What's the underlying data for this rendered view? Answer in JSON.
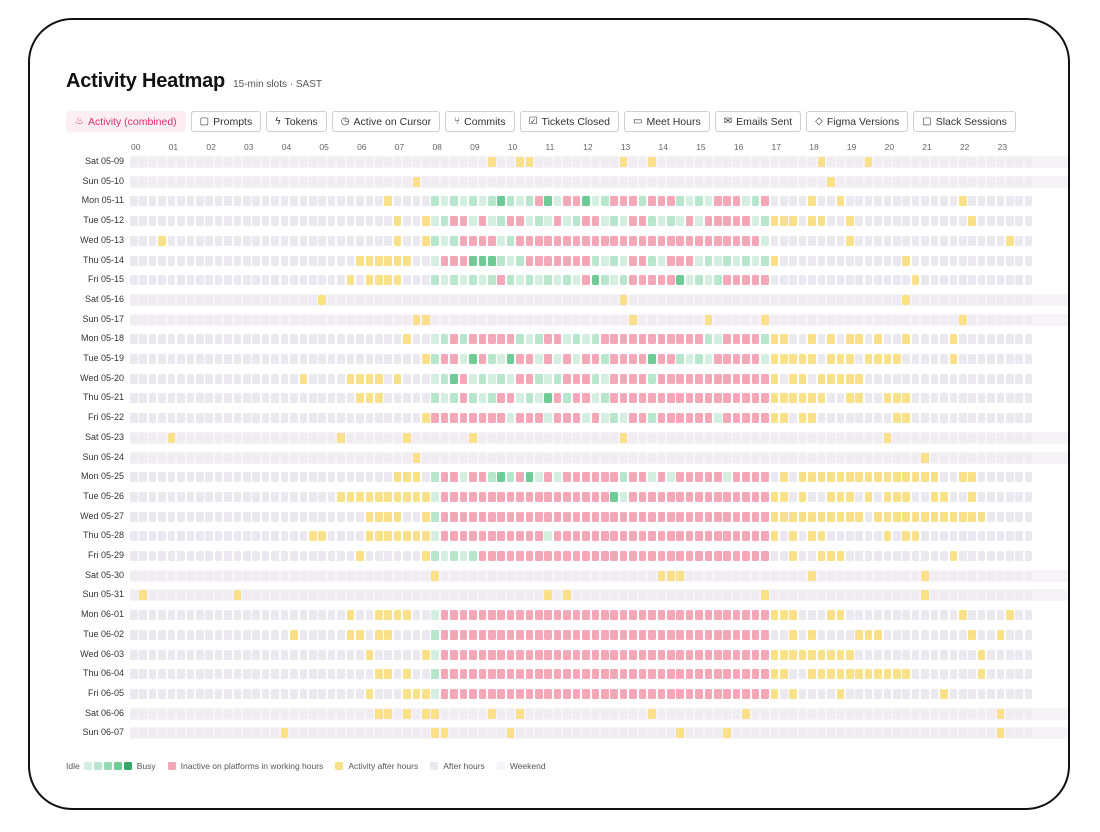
{
  "header": {
    "title": "Activity Heatmap",
    "subtitle": "15-min slots · SAST"
  },
  "tabs": [
    {
      "label": "Activity (combined)",
      "icon": "flame-icon",
      "glyph": "♨",
      "active": true
    },
    {
      "label": "Prompts",
      "icon": "chat-icon",
      "glyph": "▢"
    },
    {
      "label": "Tokens",
      "icon": "bolt-icon",
      "glyph": "ϟ"
    },
    {
      "label": "Active on Cursor",
      "icon": "clock-icon",
      "glyph": "◷"
    },
    {
      "label": "Commits",
      "icon": "branch-icon",
      "glyph": "⑂"
    },
    {
      "label": "Tickets Closed",
      "icon": "checkbox-icon",
      "glyph": "☑"
    },
    {
      "label": "Meet Hours",
      "icon": "video-icon",
      "glyph": "▭"
    },
    {
      "label": "Emails Sent",
      "icon": "mail-icon",
      "glyph": "✉"
    },
    {
      "label": "Figma Versions",
      "icon": "tag-icon",
      "glyph": "◇"
    },
    {
      "label": "Slack Sessions",
      "icon": "message-icon",
      "glyph": "▢"
    }
  ],
  "hours": [
    "00",
    "01",
    "02",
    "03",
    "04",
    "05",
    "06",
    "07",
    "08",
    "09",
    "10",
    "11",
    "12",
    "13",
    "14",
    "15",
    "16",
    "17",
    "18",
    "19",
    "20",
    "21",
    "22",
    "23"
  ],
  "days": [
    {
      "label": "Sat 05-09",
      "weekend": true,
      "after": [
        38,
        41,
        42,
        52,
        55,
        73,
        78
      ]
    },
    {
      "label": "Sun 05-10",
      "weekend": true,
      "after": [
        30,
        74
      ]
    },
    {
      "label": "Mon 05-11",
      "weekend": false,
      "after": [
        27,
        33,
        72,
        75,
        88
      ],
      "start": 32,
      "end": 68,
      "busy": [
        39,
        44,
        48
      ],
      "inactive": [
        43,
        46,
        47,
        51,
        52,
        53,
        55,
        56,
        57,
        62,
        63,
        64,
        67
      ]
    },
    {
      "label": "Tue 05-12",
      "weekend": false,
      "after": [
        28,
        31,
        68,
        69,
        70,
        72,
        73,
        76,
        89
      ],
      "start": 32,
      "end": 68,
      "busy": [],
      "inactive": [
        34,
        35,
        37,
        40,
        41,
        45,
        48,
        49,
        53,
        54,
        59,
        61,
        62,
        63,
        64,
        65
      ]
    },
    {
      "label": "Wed 05-13",
      "weekend": false,
      "after": [
        3,
        28,
        31,
        76,
        93
      ],
      "start": 32,
      "end": 68,
      "busy": [],
      "inactive": [
        35,
        36,
        37,
        38,
        41,
        42,
        43,
        44,
        45,
        46,
        47,
        48,
        49,
        50,
        51,
        52,
        53,
        54,
        55,
        56,
        57,
        58,
        59,
        60,
        61,
        62,
        63,
        64,
        65,
        66
      ]
    },
    {
      "label": "Thu 05-14",
      "weekend": false,
      "after": [
        24,
        25,
        26,
        27,
        28,
        29,
        68,
        82
      ],
      "start": 32,
      "end": 68,
      "busy": [
        36,
        37,
        38
      ],
      "inactive": [
        33,
        34,
        35,
        42,
        43,
        44,
        45,
        46,
        47,
        48,
        53,
        54,
        57,
        58,
        59
      ]
    },
    {
      "label": "Fri 05-15",
      "weekend": false,
      "after": [
        23,
        25,
        26,
        27,
        28,
        83
      ],
      "start": 32,
      "end": 68,
      "busy": [
        49,
        58
      ],
      "inactive": [
        39,
        48,
        53,
        54,
        55,
        56,
        57,
        63,
        64,
        65,
        66,
        67
      ]
    },
    {
      "label": "Sat 05-16",
      "weekend": true,
      "after": [
        20,
        52,
        82
      ]
    },
    {
      "label": "Sun 05-17",
      "weekend": true,
      "after": [
        30,
        31,
        53,
        61,
        67,
        88
      ]
    },
    {
      "label": "Mon 05-18",
      "weekend": false,
      "after": [
        29,
        68,
        69,
        72,
        74,
        76,
        77,
        79,
        82,
        87
      ],
      "start": 32,
      "end": 68,
      "busy": [],
      "inactive": [
        34,
        36,
        37,
        38,
        39,
        40,
        44,
        45,
        50,
        51,
        52,
        53,
        54,
        55,
        56,
        57,
        58,
        59,
        60,
        63,
        64,
        65,
        66
      ]
    },
    {
      "label": "Tue 05-19",
      "weekend": false,
      "after": [
        31,
        68,
        69,
        70,
        71,
        72,
        74,
        75,
        76,
        78,
        79,
        80,
        81,
        87
      ],
      "start": 32,
      "end": 68,
      "busy": [
        36,
        40,
        55
      ],
      "inactive": [
        33,
        34,
        37,
        41,
        42,
        44,
        46,
        48,
        49,
        51,
        52,
        53,
        54,
        56,
        57,
        62,
        63,
        64,
        65,
        66
      ]
    },
    {
      "label": "Wed 05-20",
      "weekend": false,
      "after": [
        18,
        23,
        24,
        25,
        26,
        28,
        68,
        70,
        71,
        73,
        74,
        75,
        76,
        77
      ],
      "start": 32,
      "end": 68,
      "busy": [
        34
      ],
      "inactive": [
        35,
        41,
        42,
        46,
        47,
        48,
        51,
        52,
        53,
        54,
        56,
        57,
        58,
        59,
        60,
        61,
        62,
        63,
        64,
        65,
        66,
        67
      ]
    },
    {
      "label": "Thu 05-21",
      "weekend": false,
      "after": [
        24,
        25,
        26,
        68,
        69,
        70,
        71,
        72,
        73,
        76,
        77,
        80,
        81,
        82
      ],
      "start": 32,
      "end": 68,
      "busy": [
        44
      ],
      "inactive": [
        35,
        39,
        40,
        45,
        47,
        48,
        51,
        52,
        53,
        54,
        55,
        56,
        57,
        58,
        59,
        60,
        61,
        62,
        63,
        64,
        65,
        66,
        67
      ]
    },
    {
      "label": "Fri 05-22",
      "weekend": false,
      "after": [
        31,
        68,
        69,
        71,
        72,
        81,
        82
      ],
      "start": 32,
      "end": 68,
      "busy": [],
      "inactive": [
        32,
        33,
        34,
        35,
        36,
        37,
        38,
        39,
        41,
        42,
        43,
        45,
        46,
        47,
        49,
        53,
        54,
        56,
        57,
        58,
        59,
        60,
        61,
        63,
        64,
        65,
        66,
        67
      ]
    },
    {
      "label": "Sat 05-23",
      "weekend": true,
      "after": [
        4,
        22,
        29,
        36,
        52,
        80
      ]
    },
    {
      "label": "Sun 05-24",
      "weekend": true,
      "after": [
        30,
        84
      ]
    },
    {
      "label": "Mon 05-25",
      "weekend": false,
      "after": [
        28,
        29,
        30,
        69,
        71,
        72,
        73,
        74,
        75,
        76,
        77,
        78,
        79,
        80,
        81,
        82,
        83,
        84,
        85,
        88,
        89
      ],
      "start": 32,
      "end": 68,
      "busy": [
        39,
        42
      ],
      "inactive": [
        33,
        34,
        36,
        37,
        41,
        44,
        46,
        47,
        48,
        49,
        50,
        51,
        53,
        54,
        56,
        58,
        59,
        60,
        61,
        62,
        64,
        65,
        66,
        67
      ]
    },
    {
      "label": "Tue 05-26",
      "weekend": false,
      "after": [
        22,
        23,
        24,
        25,
        26,
        27,
        28,
        29,
        30,
        31,
        68,
        69,
        71,
        74,
        75,
        76,
        78,
        80,
        81,
        82,
        85,
        86,
        89
      ],
      "start": 32,
      "end": 68,
      "busy": [
        51
      ],
      "inactive": [
        33,
        34,
        35,
        36,
        37,
        38,
        39,
        40,
        41,
        42,
        43,
        44,
        45,
        46,
        47,
        48,
        49,
        50,
        53,
        54,
        55,
        56,
        57,
        58,
        59,
        60,
        61,
        62,
        63,
        64,
        65,
        66,
        67
      ]
    },
    {
      "label": "Wed 05-27",
      "weekend": false,
      "after": [
        25,
        26,
        27,
        28,
        31,
        68,
        69,
        70,
        71,
        72,
        73,
        74,
        75,
        76,
        77,
        79,
        80,
        81,
        82,
        83,
        84,
        85,
        86,
        87,
        88,
        89,
        90
      ],
      "start": 32,
      "end": 68,
      "busy": [],
      "inactive": [
        33,
        34,
        35,
        36,
        37,
        38,
        39,
        40,
        41,
        42,
        43,
        44,
        45,
        46,
        47,
        48,
        49,
        50,
        51,
        52,
        53,
        54,
        55,
        56,
        57,
        58,
        59,
        60,
        61,
        62,
        63,
        64,
        65,
        66,
        67
      ]
    },
    {
      "label": "Thu 05-28",
      "weekend": false,
      "after": [
        19,
        20,
        25,
        26,
        27,
        28,
        29,
        30,
        31,
        68,
        70,
        72,
        73,
        80,
        82,
        83
      ],
      "start": 32,
      "end": 68,
      "busy": [],
      "inactive": [
        33,
        34,
        35,
        36,
        37,
        38,
        39,
        40,
        41,
        42,
        43,
        45,
        46,
        47,
        48,
        49,
        50,
        51,
        52,
        53,
        54,
        55,
        56,
        57,
        58,
        59,
        60,
        61,
        62,
        63,
        64,
        65,
        66,
        67
      ]
    },
    {
      "label": "Fri 05-29",
      "weekend": false,
      "after": [
        24,
        31,
        70,
        73,
        74,
        75,
        87
      ],
      "start": 32,
      "end": 68,
      "busy": [],
      "inactive": [
        37,
        38,
        39,
        40,
        41,
        42,
        43,
        44,
        45,
        46,
        47,
        48,
        49,
        50,
        51,
        52,
        53,
        54,
        55,
        56,
        57,
        58,
        59,
        60,
        61,
        62,
        63,
        64,
        65,
        66,
        67
      ]
    },
    {
      "label": "Sat 05-30",
      "weekend": true,
      "after": [
        32,
        56,
        57,
        58,
        72,
        84
      ]
    },
    {
      "label": "Sun 05-31",
      "weekend": true,
      "after": [
        1,
        11,
        44,
        46,
        67,
        84
      ]
    },
    {
      "label": "Mon 06-01",
      "weekend": false,
      "after": [
        23,
        26,
        27,
        28,
        29,
        68,
        69,
        70,
        74,
        75,
        88,
        93
      ],
      "start": 32,
      "end": 68,
      "busy": [],
      "inactive": [
        33,
        34,
        35,
        36,
        37,
        38,
        39,
        40,
        41,
        42,
        43,
        44,
        45,
        46,
        47,
        48,
        49,
        50,
        51,
        52,
        53,
        54,
        55,
        56,
        57,
        58,
        59,
        60,
        61,
        62,
        63,
        64,
        65,
        66,
        67
      ]
    },
    {
      "label": "Tue 06-02",
      "weekend": false,
      "after": [
        17,
        23,
        24,
        26,
        27,
        70,
        72,
        77,
        78,
        79,
        89,
        92
      ],
      "start": 32,
      "end": 68,
      "busy": [],
      "inactive": [
        33,
        34,
        35,
        36,
        37,
        38,
        39,
        40,
        41,
        42,
        43,
        44,
        45,
        46,
        47,
        48,
        49,
        50,
        51,
        52,
        53,
        54,
        55,
        56,
        57,
        58,
        59,
        60,
        61,
        62,
        63,
        64,
        65,
        66,
        67
      ]
    },
    {
      "label": "Wed 06-03",
      "weekend": false,
      "after": [
        25,
        31,
        68,
        69,
        70,
        71,
        72,
        73,
        74,
        75,
        76,
        90
      ],
      "start": 32,
      "end": 68,
      "busy": [],
      "inactive": [
        33,
        34,
        35,
        36,
        37,
        38,
        39,
        40,
        41,
        42,
        43,
        44,
        45,
        46,
        47,
        48,
        49,
        50,
        51,
        52,
        53,
        54,
        55,
        56,
        57,
        58,
        59,
        60,
        61,
        62,
        63,
        64,
        65,
        66,
        67
      ]
    },
    {
      "label": "Thu 06-04",
      "weekend": false,
      "after": [
        26,
        27,
        29,
        68,
        69,
        72,
        73,
        74,
        75,
        76,
        77,
        78,
        79,
        80,
        81,
        82,
        90
      ],
      "start": 32,
      "end": 68,
      "busy": [],
      "inactive": [
        33,
        34,
        35,
        36,
        37,
        38,
        39,
        40,
        41,
        42,
        43,
        44,
        45,
        46,
        47,
        48,
        49,
        50,
        51,
        52,
        53,
        54,
        55,
        56,
        57,
        58,
        59,
        60,
        61,
        62,
        63,
        64,
        65,
        66,
        67
      ]
    },
    {
      "label": "Fri 06-05",
      "weekend": false,
      "after": [
        25,
        29,
        30,
        31,
        68,
        70,
        75,
        86
      ],
      "start": 32,
      "end": 68,
      "busy": [],
      "inactive": [
        33,
        34,
        35,
        36,
        37,
        38,
        39,
        40,
        41,
        42,
        43,
        44,
        45,
        46,
        47,
        48,
        49,
        50,
        51,
        52,
        53,
        54,
        55,
        56,
        57,
        58,
        59,
        60,
        61,
        62,
        63,
        64,
        65,
        66,
        67
      ]
    },
    {
      "label": "Sat 06-06",
      "weekend": true,
      "after": [
        26,
        27,
        29,
        31,
        32,
        38,
        41,
        55,
        65,
        92
      ]
    },
    {
      "label": "Sun 06-07",
      "weekend": true,
      "after": [
        16,
        32,
        33,
        40,
        58,
        63,
        92
      ]
    }
  ],
  "legend": {
    "idle": "Idle",
    "busy": "Busy",
    "inactive": "Inactive on platforms in working hours",
    "after_hours_activity": "Activity after hours",
    "after_hours": "After hours",
    "weekend": "Weekend"
  },
  "colors": {
    "idle_scale": [
      "#d4efe0",
      "#b7e6cc",
      "#96dab3",
      "#6fcb96",
      "#34a86a"
    ],
    "inactive": "#f3a7b7",
    "after_activity": "#f9e089",
    "after_hours": "#ebe9ef",
    "weekend": "#f6f3f8",
    "weekend_cell": "#efedf1"
  }
}
